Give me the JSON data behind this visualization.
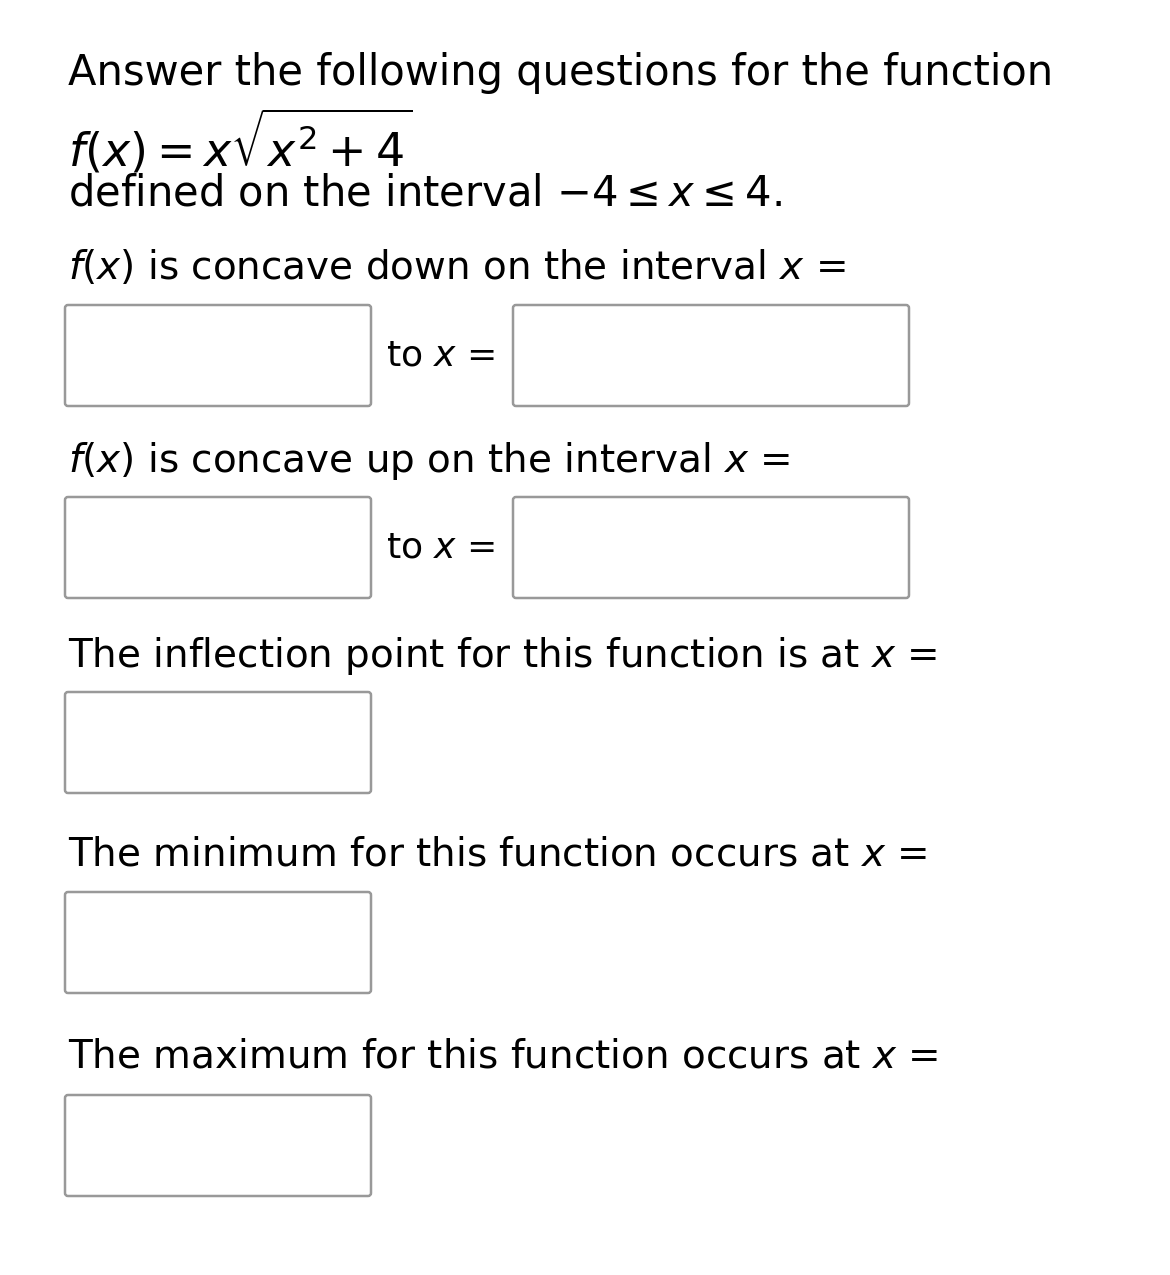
{
  "background_color": "#ffffff",
  "title_line1": "Answer the following questions for the function",
  "formula_line": "$f(x) = x\\sqrt{x^2 + 4}$",
  "domain_line": "defined on the interval $-4 \\leq x \\leq 4$.",
  "q1_text_a": "$f(x)$",
  "q1_text_b": " is concave down on the interval ",
  "q1_text_c": "$x$",
  "q1_text_d": " =",
  "q1_label": "to ",
  "q1_label2": "$x$ =",
  "q2_text_a": "$f(x)$",
  "q2_text_b": " is concave up on the interval ",
  "q2_text_c": "$x$",
  "q2_text_d": " =",
  "q2_label": "to ",
  "q2_label2": "$x$ =",
  "q3_text": "The inflection point for this function is at ",
  "q3_text2": "$x$ =",
  "q4_text": "The minimum for this function occurs at ",
  "q4_text2": "$x$ =",
  "q5_text": "The maximum for this function occurs at ",
  "q5_text2": "$x$ =",
  "box_edge_color": "#999999",
  "box_facecolor": "#ffffff",
  "text_color": "#000000",
  "font_size_title": 30,
  "font_size_formula": 33,
  "font_size_domain": 30,
  "font_size_question": 28,
  "font_size_label": 26
}
